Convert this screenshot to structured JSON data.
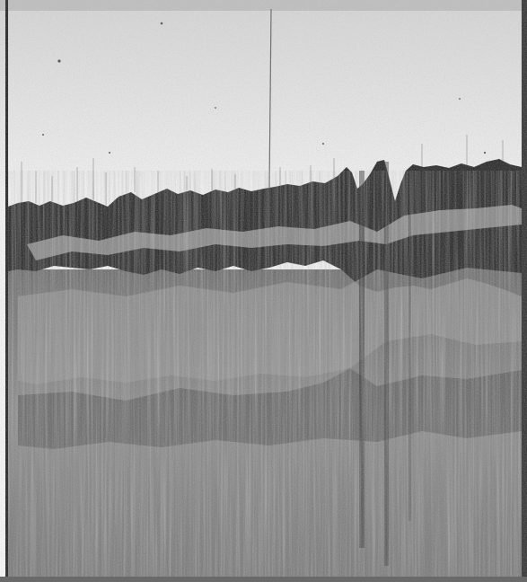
{
  "image": {
    "kind": "grayscale scanned echogram / seismic-style profile",
    "colors": {
      "paper": "#f3f3f3",
      "top_band": "#c9c9c9",
      "dark_band": "#2f2f2f",
      "mid_gray": "#8f8f8f",
      "light_streak": "#c7c7c7",
      "lower_gray": "#7a7a7a",
      "edge": "#1c1c1c"
    }
  }
}
